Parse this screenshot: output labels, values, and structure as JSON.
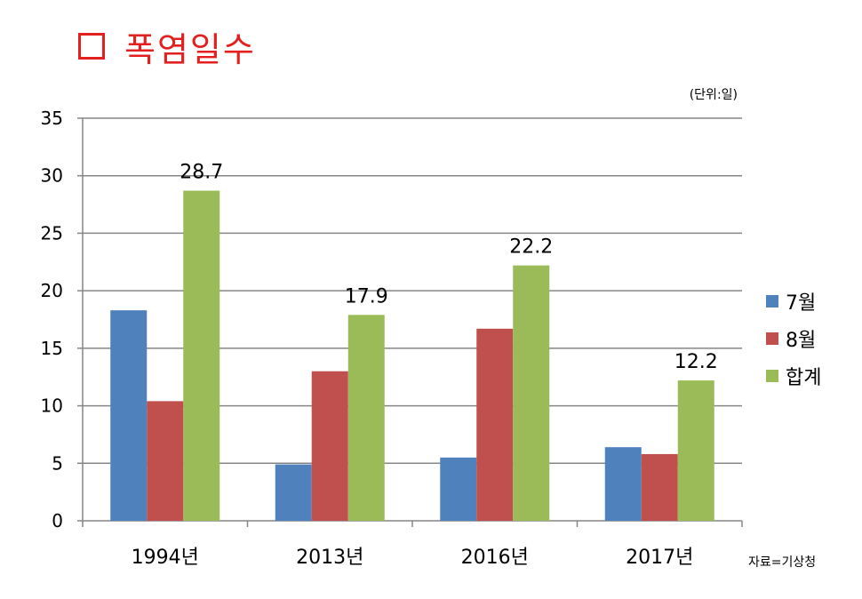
{
  "chart_data": {
    "type": "bar",
    "title": "폭염일수",
    "unit_label": "(단위:일)",
    "source_label": "자료=기상청",
    "categories": [
      "1994년",
      "2013년",
      "2016년",
      "2017년"
    ],
    "series": [
      {
        "name": "7월",
        "color": "#4f81bd",
        "values": [
          18.3,
          4.9,
          5.5,
          6.4
        ]
      },
      {
        "name": "8월",
        "color": "#c0504d",
        "values": [
          10.4,
          13.0,
          16.7,
          5.8
        ]
      },
      {
        "name": "합계",
        "color": "#9bbb59",
        "values": [
          28.7,
          17.9,
          22.2,
          12.2
        ]
      }
    ],
    "data_labels": {
      "series": "합계",
      "values": [
        "28.7",
        "17.9",
        "22.2",
        "12.2"
      ]
    },
    "yticks": [
      "0",
      "5",
      "10",
      "15",
      "20",
      "25",
      "30",
      "35"
    ],
    "ylim": [
      0,
      35
    ],
    "grid": true,
    "legend_position": "right"
  }
}
